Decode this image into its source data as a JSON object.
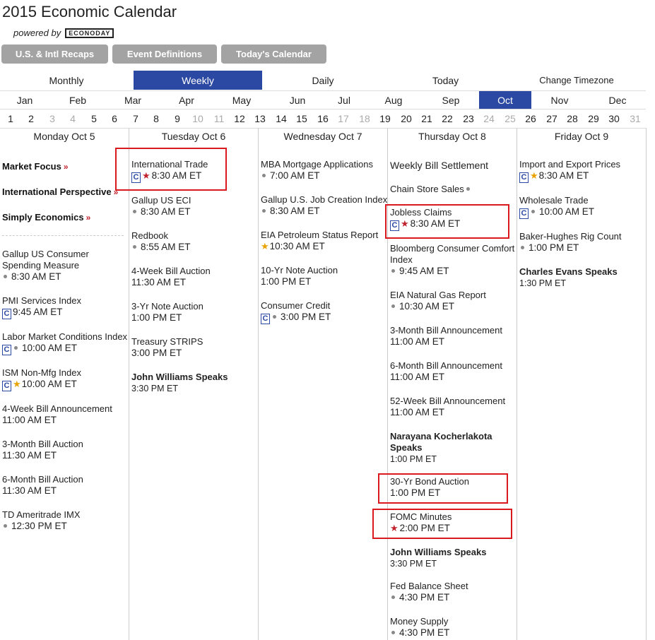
{
  "header": {
    "title": "2015 Economic Calendar",
    "powered_by": "powered by",
    "logo_text": "ECONODAY"
  },
  "top_buttons": [
    "U.S. & Intl Recaps",
    "Event Definitions",
    "Today's Calendar"
  ],
  "view_tabs": {
    "monthly": "Monthly",
    "weekly": "Weekly",
    "daily": "Daily",
    "today": "Today",
    "change_timezone": "Change Timezone",
    "active": "Weekly"
  },
  "months": [
    "Jan",
    "Feb",
    "Mar",
    "Apr",
    "May",
    "Jun",
    "Jul",
    "Aug",
    "Sep",
    "Oct",
    "Nov",
    "Dec"
  ],
  "active_month": "Oct",
  "days": [
    "1",
    "2",
    "3",
    "4",
    "5",
    "6",
    "7",
    "8",
    "9",
    "10",
    "11",
    "12",
    "13",
    "14",
    "15",
    "16",
    "17",
    "18",
    "19",
    "20",
    "21",
    "22",
    "23",
    "24",
    "25",
    "26",
    "27",
    "28",
    "29",
    "30",
    "31"
  ],
  "weekend_days": [
    "3",
    "4",
    "10",
    "11",
    "17",
    "18",
    "24",
    "25",
    "31"
  ],
  "colors": {
    "accent": "#2b48a3",
    "button_gray": "#a3a3a3",
    "star_red": "#c0232d",
    "star_gold": "#e9a200",
    "highlight_box": "#d9191d"
  },
  "columns": {
    "mon": {
      "header": "Monday Oct 5",
      "focus_links": [
        "Market Focus",
        "International Perspective",
        "Simply Economics"
      ],
      "events": [
        {
          "name": "Gallup US Consumer Spending Measure",
          "time": "8:30 AM ET"
        },
        {
          "name": "PMI Services Index",
          "time": "9:45 AM ET"
        },
        {
          "name": "Labor Market Conditions Index",
          "time": "10:00 AM ET"
        },
        {
          "name": "ISM Non-Mfg Index",
          "time": "10:00 AM ET"
        },
        {
          "name": "4-Week Bill Announcement",
          "time": "11:00 AM ET"
        },
        {
          "name": "3-Month Bill Auction",
          "time": "11:30 AM ET"
        },
        {
          "name": "6-Month Bill Auction",
          "time": "11:30 AM ET"
        },
        {
          "name": "TD Ameritrade IMX",
          "time": "12:30 PM ET"
        }
      ]
    },
    "tue": {
      "header": "Tuesday Oct 6",
      "events": [
        {
          "name": "International Trade",
          "time": "8:30 AM ET"
        },
        {
          "name": "Gallup US ECI",
          "time": "8:30 AM ET"
        },
        {
          "name": "Redbook",
          "time": "8:55 AM ET"
        },
        {
          "name": "4-Week Bill Auction",
          "time": "11:30 AM ET"
        },
        {
          "name": "3-Yr Note Auction",
          "time": "1:00 PM ET"
        },
        {
          "name": "Treasury STRIPS",
          "time": "3:00 PM ET"
        },
        {
          "name": "John Williams Speaks",
          "time": "3:30 PM ET"
        }
      ]
    },
    "wed": {
      "header": "Wednesday Oct 7",
      "events": [
        {
          "name": "MBA Mortgage Applications",
          "time": "7:00 AM ET"
        },
        {
          "name": "Gallup U.S. Job Creation Index",
          "time": "8:30 AM ET"
        },
        {
          "name": "EIA Petroleum Status Report",
          "time": "10:30 AM ET"
        },
        {
          "name": "10-Yr Note Auction",
          "time": "1:00 PM ET"
        },
        {
          "name": "Consumer Credit",
          "time": "3:00 PM ET"
        }
      ]
    },
    "thu": {
      "header": "Thursday Oct 8",
      "events": [
        {
          "name": "Weekly Bill Settlement",
          "time": ""
        },
        {
          "name": "Chain Store Sales",
          "time": ""
        },
        {
          "name": "Jobless Claims",
          "time": "8:30 AM ET"
        },
        {
          "name": "Bloomberg Consumer Comfort Index",
          "time": "9:45 AM ET"
        },
        {
          "name": "EIA Natural Gas Report",
          "time": "10:30 AM ET"
        },
        {
          "name": "3-Month Bill Announcement",
          "time": "11:00 AM ET"
        },
        {
          "name": "6-Month Bill Announcement",
          "time": "11:00 AM ET"
        },
        {
          "name": "52-Week Bill Announcement",
          "time": "11:00 AM ET"
        },
        {
          "name": "Narayana Kocherlakota Speaks",
          "time": "1:00 PM ET"
        },
        {
          "name": "30-Yr Bond Auction",
          "time": "1:00 PM ET"
        },
        {
          "name": "FOMC Minutes",
          "time": "2:00 PM ET"
        },
        {
          "name": "John Williams Speaks",
          "time": "3:30 PM ET"
        },
        {
          "name": "Fed Balance Sheet",
          "time": "4:30 PM ET"
        },
        {
          "name": "Money Supply",
          "time": "4:30 PM ET"
        }
      ]
    },
    "fri": {
      "header": "Friday Oct 9",
      "events": [
        {
          "name": "Import and Export Prices",
          "time": "8:30 AM ET"
        },
        {
          "name": "Wholesale Trade",
          "time": "10:00 AM ET"
        },
        {
          "name": "Baker-Hughes Rig Count",
          "time": "1:00 PM ET"
        },
        {
          "name": "Charles Evans Speaks",
          "time": "1:30 PM ET"
        }
      ]
    }
  }
}
